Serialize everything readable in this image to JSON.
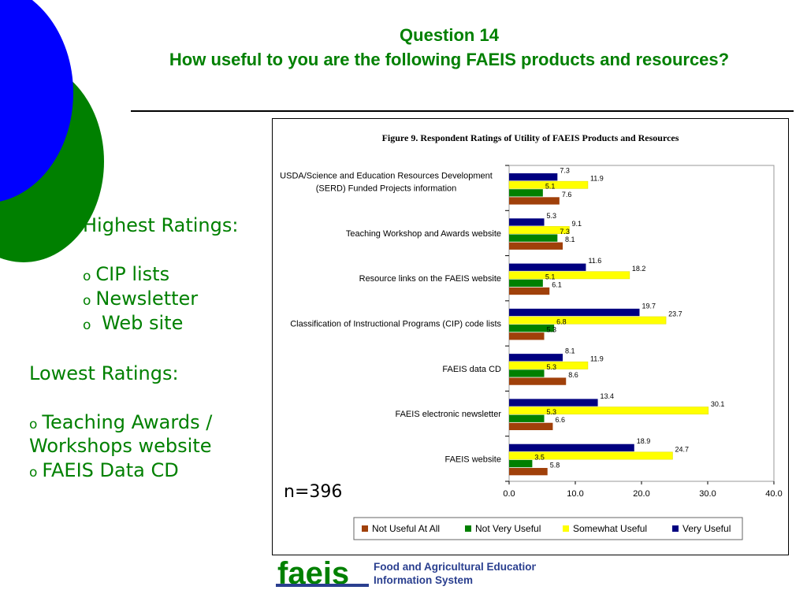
{
  "slide": {
    "question_number": "Question 14",
    "question_text": "How useful to you are the following FAEIS products and resources?",
    "highest_heading": "Highest Ratings:",
    "highest_items": [
      "CIP lists",
      "Newsletter",
      " Web site"
    ],
    "lowest_heading": "Lowest Ratings:",
    "lowest_items": [
      "Teaching Awards /",
      "Workshops website",
      "FAEIS Data CD"
    ],
    "n_label": "n=396",
    "bullet": "o",
    "logo_word": "faeis",
    "logo_line1": "Food and Agricultural Education",
    "logo_line2": "Information System",
    "colors": {
      "accent_green": "#008000",
      "circle_blue": "#0000FF",
      "logo_blue": "#2A3F8F"
    }
  },
  "chart_data": {
    "type": "bar",
    "orientation": "horizontal",
    "title": "Figure 9.  Respondent Ratings of Utility of FAEIS Products and Resources",
    "categories": [
      [
        "USDA/Science and Education Resources Development",
        "(SERD) Funded Projects information"
      ],
      [
        "Teaching Workshop and Awards website"
      ],
      [
        "Resource links on the FAEIS website"
      ],
      [
        "Classification of Instructional Programs (CIP) code lists"
      ],
      [
        "FAEIS data CD"
      ],
      [
        "FAEIS electronic newsletter"
      ],
      [
        "FAEIS website"
      ]
    ],
    "series": [
      {
        "name": "Very Useful",
        "color": "#000080",
        "values": [
          7.3,
          5.3,
          11.6,
          19.7,
          8.1,
          13.4,
          18.9
        ]
      },
      {
        "name": "Somewhat Useful",
        "color": "#FFFF00",
        "values": [
          11.9,
          9.1,
          18.2,
          23.7,
          11.9,
          30.1,
          24.7
        ]
      },
      {
        "name": "Not Very Useful",
        "color": "#008000",
        "values": [
          5.1,
          7.3,
          5.1,
          6.8,
          5.3,
          5.3,
          3.5
        ]
      },
      {
        "name": "Not Useful At All",
        "color": "#A0400A",
        "values": [
          7.6,
          8.1,
          6.1,
          5.3,
          8.6,
          6.6,
          5.8
        ]
      }
    ],
    "legend_order": [
      "Not Useful At All",
      "Not Very Useful",
      "Somewhat Useful",
      "Very Useful"
    ],
    "xlim": [
      0,
      40
    ],
    "xticks": [
      "0.0",
      "10.0",
      "20.0",
      "30.0",
      "40.0"
    ],
    "grid": false,
    "legend_position": "bottom"
  }
}
